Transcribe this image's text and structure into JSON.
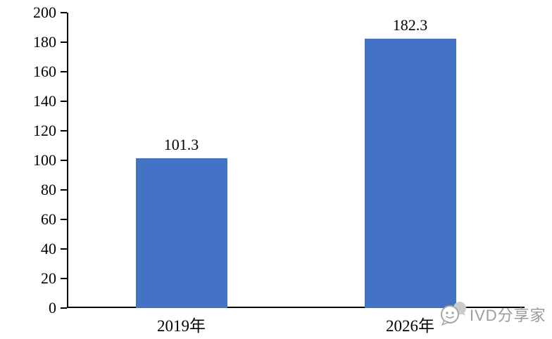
{
  "chart_data": {
    "type": "bar",
    "categories": [
      "2019年",
      "2026年"
    ],
    "values": [
      101.3,
      182.3
    ],
    "data_labels": [
      "101.3",
      "182.3"
    ],
    "title": "",
    "xlabel": "",
    "ylabel": "",
    "ylim": [
      0,
      200
    ],
    "y_ticks": [
      0,
      20,
      40,
      60,
      80,
      100,
      120,
      140,
      160,
      180,
      200
    ],
    "grid": false,
    "legend": "none",
    "bar_color": "#4472C4",
    "axis_color": "#000000",
    "label_color": "#000000"
  },
  "watermark": {
    "text": "IVD分享家",
    "icon": "wechat-chat-bubble-icon",
    "color": "#9b9b9b"
  }
}
